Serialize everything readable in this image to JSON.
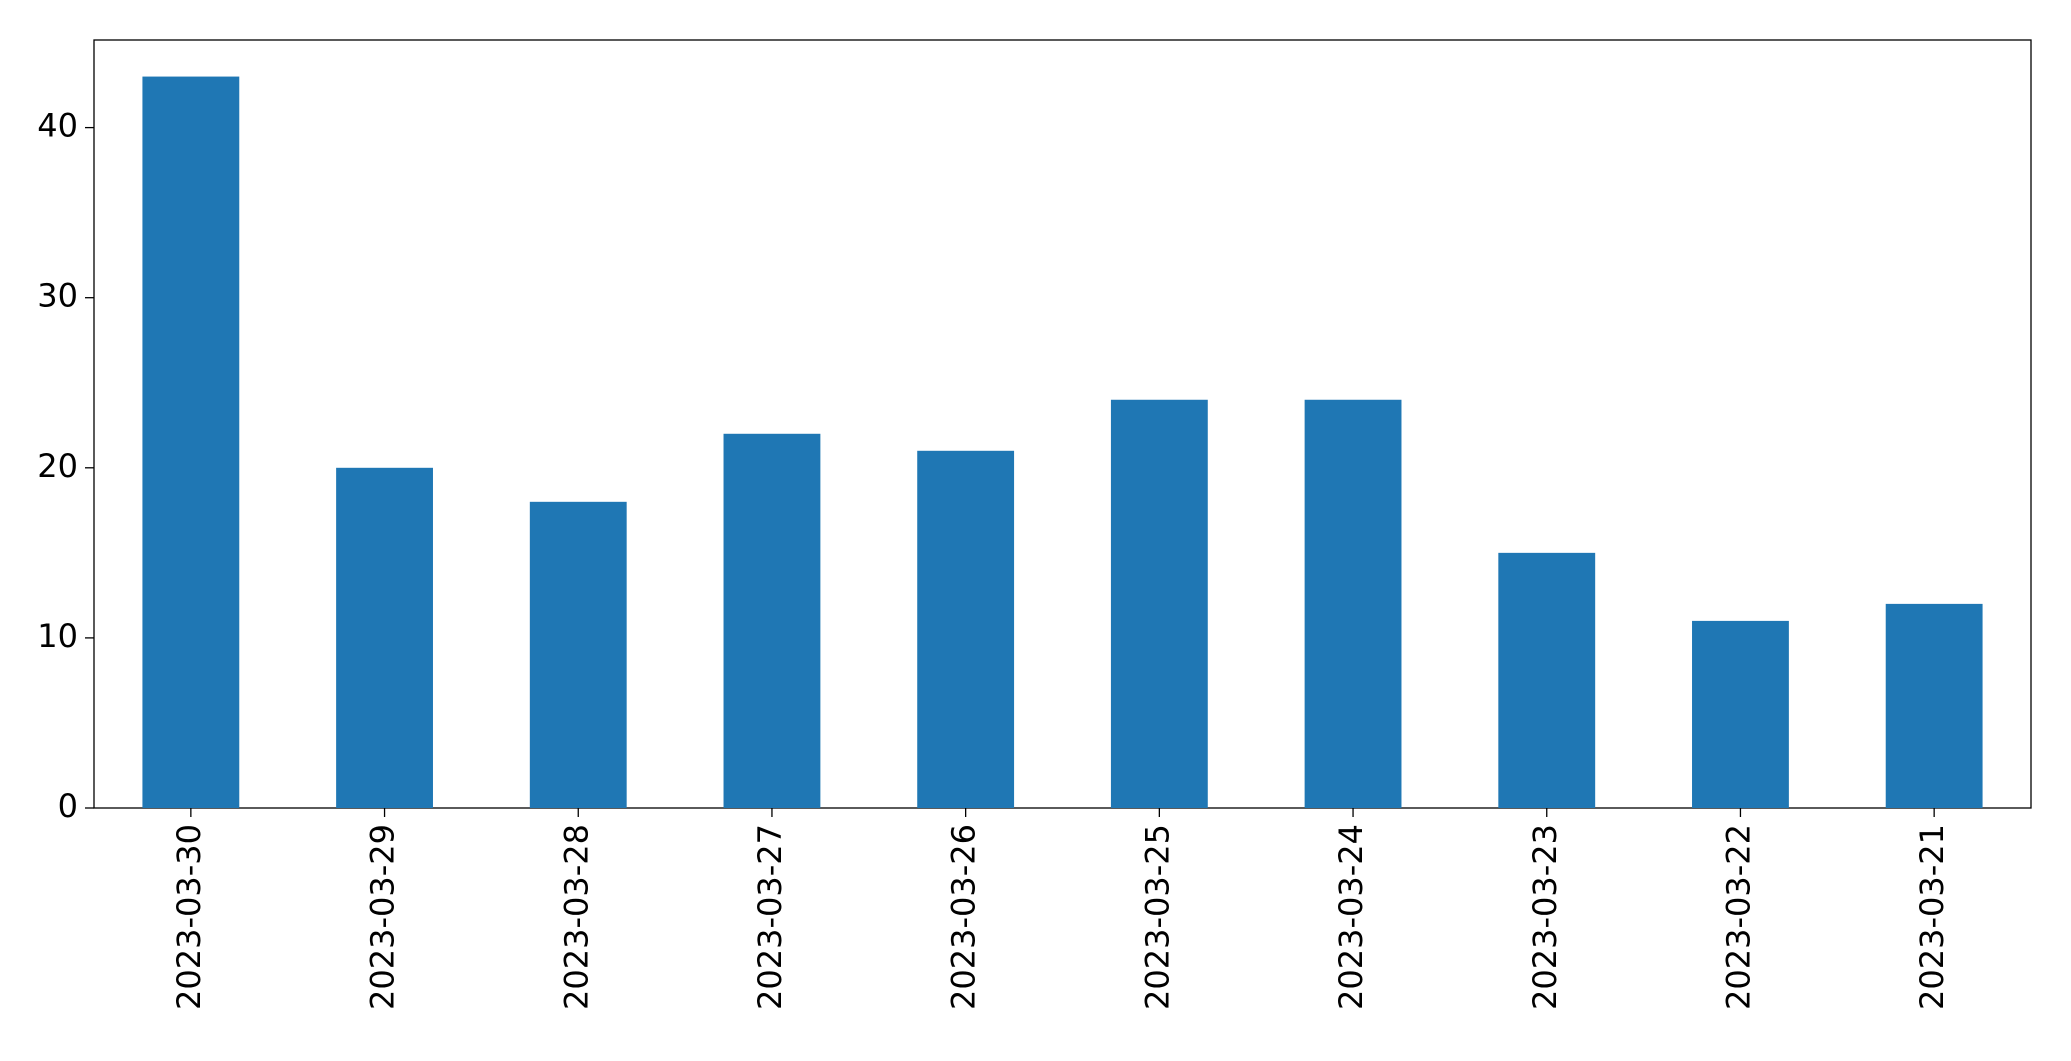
{
  "chart_data": {
    "type": "bar",
    "categories": [
      "2023-03-30",
      "2023-03-29",
      "2023-03-28",
      "2023-03-27",
      "2023-03-26",
      "2023-03-25",
      "2023-03-24",
      "2023-03-23",
      "2023-03-22",
      "2023-03-21"
    ],
    "values": [
      43,
      20,
      18,
      22,
      21,
      24,
      24,
      15,
      11,
      12
    ],
    "color": "#1f77b4",
    "ylim": [
      0,
      45.15
    ],
    "yticks": [
      0,
      10,
      20,
      30,
      40
    ],
    "grid": false
  }
}
